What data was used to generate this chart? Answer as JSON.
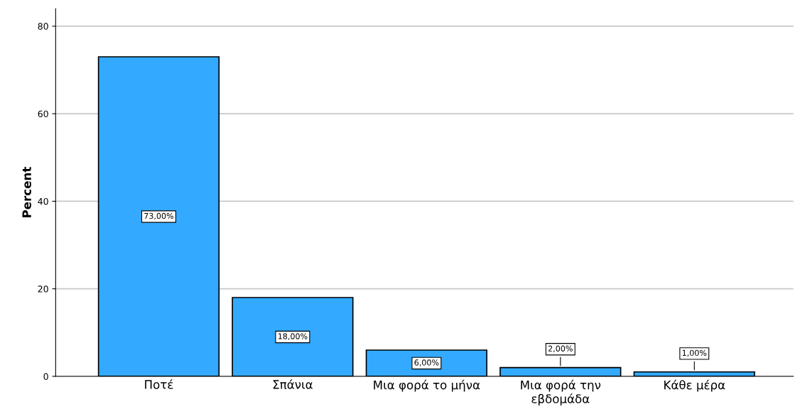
{
  "chart_data": {
    "type": "bar",
    "ylabel": "Percent",
    "categories": [
      "Ποτέ",
      "Σπάνια",
      "Μια φορά το μήνα",
      "Μια φορά την\nεβδομάδα",
      "Κάθε μέρα"
    ],
    "values": [
      73,
      18,
      6,
      2,
      1
    ],
    "color": "#33aaff",
    "value_labels": [
      "73,00%",
      "18,00%",
      "6,00%",
      "2,00%",
      "1,00%"
    ],
    "ylim": [
      0,
      84
    ],
    "yticks": [
      0,
      20,
      40,
      60,
      80
    ],
    "grid": "y",
    "legend": false
  }
}
